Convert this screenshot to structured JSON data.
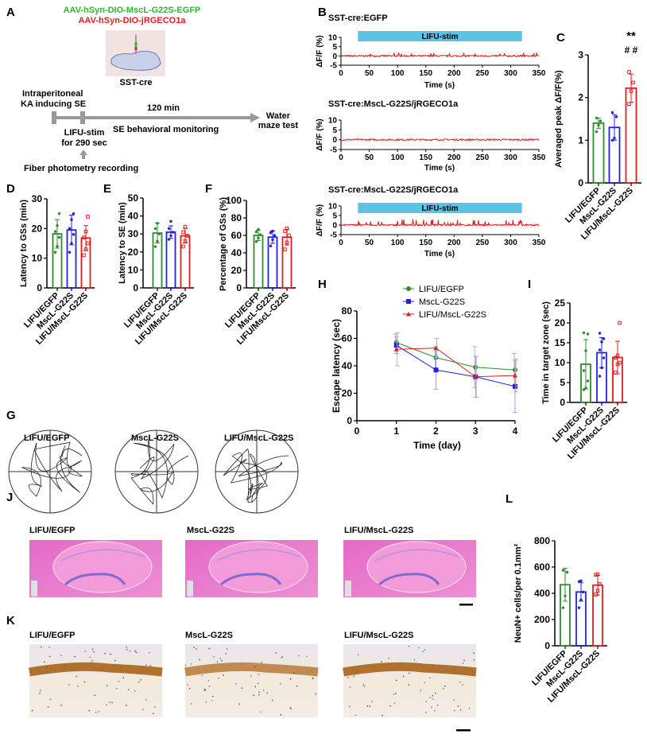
{
  "colors": {
    "green": "#2e8b2e",
    "blue": "#2222dd",
    "red": "#e01e1e",
    "stim": "#5cc3e6",
    "arrow": "#a0a0a0"
  },
  "panel_letters": [
    "A",
    "B",
    "C",
    "D",
    "E",
    "F",
    "G",
    "H",
    "I",
    "J",
    "K",
    "L"
  ],
  "panel_a": {
    "virus_green": "AAV-hSyn-DIO-MscL-G22S-EGFP",
    "virus_red": "AAV-hSyn-DIO-jRGECO1a",
    "mouse": "SST-cre",
    "step1_line1": "Intraperitoneal",
    "step1_line2": "KA inducing SE",
    "duration": "120 min",
    "end_line1": "Water",
    "end_line2": "maze test",
    "stim_line1": "LIFU-stim",
    "stim_line2": "for 290 sec",
    "monitoring": "SE behavioral monitoring",
    "recording": "Fiber photometry recording"
  },
  "groups": [
    "LIFU/EGFP",
    "MscL-G22S",
    "LIFU/MscL-G22S"
  ],
  "chart_data": [
    {
      "id": "B",
      "type": "line",
      "traces": [
        {
          "title": "SST-cre:EGFP",
          "stim_label": "LIFU-stim",
          "stim": true
        },
        {
          "title": "SST-cre:MscL-G22S/jRGECO1a",
          "stim": false
        },
        {
          "title": "SST-cre:MscL-G22S/jRGECO1a",
          "stim_label": "LIFU-stim",
          "stim": true
        }
      ],
      "stim_range": [
        30,
        320
      ],
      "xlabel": "Time (s)",
      "ylabel": "ΔF/F (%)",
      "xlim": [
        0,
        350
      ],
      "xticks": [
        0,
        50,
        100,
        150,
        200,
        250,
        300,
        350
      ],
      "ylim": [
        -5,
        10
      ],
      "yticks": [
        10,
        5,
        0,
        -5
      ]
    },
    {
      "id": "C",
      "type": "bar",
      "ylabel": "Averaged peak ΔF/F(%)",
      "ylim": [
        0,
        3
      ],
      "yticks": [
        0,
        1,
        2,
        3
      ],
      "values": [
        1.4,
        1.3,
        2.22
      ],
      "errors": [
        0.12,
        0.3,
        0.33
      ],
      "points": [
        [
          1.2,
          1.35,
          1.45,
          1.52
        ],
        [
          1.0,
          1.05,
          1.55,
          1.65
        ],
        [
          1.85,
          2.15,
          2.35,
          2.6
        ]
      ],
      "annotations": [
        "**",
        "# #"
      ]
    },
    {
      "id": "D",
      "type": "bar",
      "ylabel": "Latency to GSs (min)",
      "ylim": [
        0,
        30
      ],
      "yticks": [
        0,
        10,
        20,
        30
      ],
      "values": [
        18.2,
        19.5,
        16.8
      ],
      "errors": [
        4.8,
        5.0,
        4.2
      ],
      "points": [
        [
          12,
          14,
          17,
          19,
          21,
          25
        ],
        [
          12,
          15,
          18,
          20,
          23,
          25
        ],
        [
          11,
          13,
          15,
          17,
          19,
          24
        ]
      ]
    },
    {
      "id": "E",
      "type": "bar",
      "ylabel": "Latency to SE (min)",
      "ylim": [
        0,
        50
      ],
      "yticks": [
        0,
        10,
        20,
        30,
        40,
        50
      ],
      "values": [
        30.5,
        31,
        29
      ],
      "errors": [
        5.5,
        3.5,
        4
      ],
      "points": [
        [
          23,
          26,
          30,
          33,
          36
        ],
        [
          27,
          29,
          31,
          33,
          37
        ],
        [
          23,
          26,
          29,
          31,
          34
        ]
      ]
    },
    {
      "id": "F",
      "type": "bar",
      "ylabel": "Percentage of GSs (%)",
      "ylim": [
        0,
        100
      ],
      "yticks": [
        0,
        20,
        40,
        60,
        80,
        100
      ],
      "values": [
        60,
        58,
        58
      ],
      "errors": [
        6,
        7,
        9
      ],
      "points": [
        [
          53,
          57,
          61,
          64,
          67
        ],
        [
          48,
          55,
          60,
          63,
          65
        ],
        [
          44,
          52,
          60,
          65,
          68
        ]
      ]
    },
    {
      "id": "H",
      "type": "line",
      "xlabel": "Time (day)",
      "ylabel": "Escape latency (sec)",
      "xlim": [
        0,
        4
      ],
      "xticks": [
        0,
        1,
        2,
        3,
        4
      ],
      "ylim": [
        0,
        80
      ],
      "yticks": [
        0,
        20,
        40,
        60,
        80
      ],
      "legend": "top",
      "x": [
        1,
        2,
        3,
        4
      ],
      "series": [
        {
          "name": "LIFU/EGFP",
          "values": [
            57,
            46,
            39,
            37
          ],
          "errors": [
            6,
            8,
            15,
            12
          ]
        },
        {
          "name": "MscL-G22S",
          "values": [
            55,
            37,
            32,
            25
          ],
          "errors": [
            6,
            14,
            15,
            19
          ]
        },
        {
          "name": "LIFU/MscL-G22S",
          "values": [
            52,
            53,
            32,
            33
          ],
          "errors": [
            12,
            7,
            15,
            12
          ]
        }
      ]
    },
    {
      "id": "I",
      "type": "bar",
      "ylabel": "Time in target zone (sec)",
      "ylim": [
        0,
        25
      ],
      "yticks": [
        0,
        5,
        10,
        15,
        20,
        25
      ],
      "values": [
        9.6,
        12.5,
        11.3
      ],
      "errors": [
        6.2,
        3.8,
        4.1
      ],
      "points": [
        [
          3.2,
          3.6,
          5.4,
          8,
          13,
          17.2,
          17.5
        ],
        [
          6.6,
          8.7,
          11.2,
          13.2,
          15.2,
          16,
          17.4
        ],
        [
          7.5,
          9.6,
          10,
          11.2,
          11.8,
          20
        ]
      ]
    },
    {
      "id": "L",
      "type": "bar",
      "ylabel": "NeuN+ cells/per 0.1mm²",
      "ylim": [
        0,
        800
      ],
      "yticks": [
        0,
        200,
        400,
        600,
        800
      ],
      "values": [
        465,
        410,
        462
      ],
      "errors": [
        125,
        70,
        75
      ],
      "points": [
        [
          290,
          380,
          560,
          575
        ],
        [
          290,
          350,
          410,
          490,
          495
        ],
        [
          390,
          420,
          470,
          540,
          545
        ]
      ]
    }
  ],
  "panel_g": {
    "titles": [
      "LIFU/EGFP",
      "MscL-G22S",
      "LIFU/MscL-G22S"
    ]
  },
  "panel_j": {
    "titles": [
      "LIFU/EGFP",
      "MscL-G22S",
      "LIFU/MscL-G22S"
    ]
  },
  "panel_k": {
    "titles": [
      "LIFU/EGFP",
      "MscL-G22S",
      "LIFU/MscL-G22S"
    ]
  }
}
